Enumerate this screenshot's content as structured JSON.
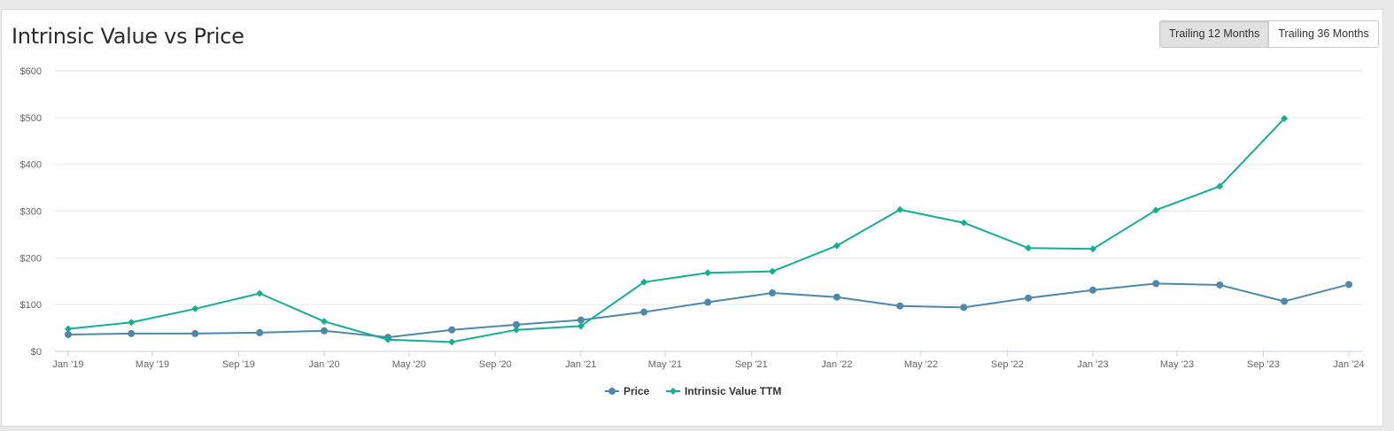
{
  "title": "Intrinsic Value vs Price",
  "buttons": [
    {
      "label": "Trailing 12 Months",
      "active": true
    },
    {
      "label": "Trailing 36 Months",
      "active": false
    }
  ],
  "colors": {
    "price": "#4f88a8",
    "intrinsic": "#12b08f",
    "grid": "#e6e6e6"
  },
  "chart_data": {
    "type": "line",
    "ylim": [
      0,
      600
    ],
    "y_ticks": [
      {
        "value": 0,
        "label": "$0"
      },
      {
        "value": 100,
        "label": "$100"
      },
      {
        "value": 200,
        "label": "$200"
      },
      {
        "value": 300,
        "label": "$300"
      },
      {
        "value": 400,
        "label": "$400"
      },
      {
        "value": 500,
        "label": "$500"
      },
      {
        "value": 600,
        "label": "$600"
      }
    ],
    "xlim": [
      "2019-01-01",
      "2024-01-01"
    ],
    "x_ticks": [
      {
        "value": "2019-01-01",
        "label": "Jan '19"
      },
      {
        "value": "2019-05-01",
        "label": "May '19"
      },
      {
        "value": "2019-09-01",
        "label": "Sep '19"
      },
      {
        "value": "2020-01-01",
        "label": "Jan '20"
      },
      {
        "value": "2020-05-01",
        "label": "May '20"
      },
      {
        "value": "2020-09-01",
        "label": "Sep '20"
      },
      {
        "value": "2021-01-01",
        "label": "Jan '21"
      },
      {
        "value": "2021-05-01",
        "label": "May '21"
      },
      {
        "value": "2021-09-01",
        "label": "Sep '21"
      },
      {
        "value": "2022-01-01",
        "label": "Jan '22"
      },
      {
        "value": "2022-05-01",
        "label": "May '22"
      },
      {
        "value": "2022-09-01",
        "label": "Sep '22"
      },
      {
        "value": "2023-01-01",
        "label": "Jan '23"
      },
      {
        "value": "2023-05-01",
        "label": "May '23"
      },
      {
        "value": "2023-09-01",
        "label": "Sep '23"
      },
      {
        "value": "2024-01-01",
        "label": "Jan '24"
      }
    ],
    "legend_position": "bottom-center",
    "series": [
      {
        "name": "Price",
        "marker": "circle",
        "points": [
          {
            "x": "2019-01-01",
            "y": 36
          },
          {
            "x": "2019-04-01",
            "y": 38
          },
          {
            "x": "2019-07-01",
            "y": 38
          },
          {
            "x": "2019-10-01",
            "y": 40
          },
          {
            "x": "2020-01-01",
            "y": 44
          },
          {
            "x": "2020-04-01",
            "y": 30
          },
          {
            "x": "2020-07-01",
            "y": 46
          },
          {
            "x": "2020-10-01",
            "y": 57
          },
          {
            "x": "2021-01-01",
            "y": 67
          },
          {
            "x": "2021-04-01",
            "y": 84
          },
          {
            "x": "2021-07-01",
            "y": 105
          },
          {
            "x": "2021-10-01",
            "y": 125
          },
          {
            "x": "2022-01-01",
            "y": 116
          },
          {
            "x": "2022-04-01",
            "y": 97
          },
          {
            "x": "2022-07-01",
            "y": 94
          },
          {
            "x": "2022-10-01",
            "y": 114
          },
          {
            "x": "2023-01-01",
            "y": 131
          },
          {
            "x": "2023-04-01",
            "y": 145
          },
          {
            "x": "2023-07-01",
            "y": 142
          },
          {
            "x": "2023-10-01",
            "y": 107
          },
          {
            "x": "2024-01-01",
            "y": 143
          }
        ]
      },
      {
        "name": "Intrinsic Value TTM",
        "marker": "diamond",
        "points": [
          {
            "x": "2019-01-01",
            "y": 48
          },
          {
            "x": "2019-04-01",
            "y": 62
          },
          {
            "x": "2019-07-01",
            "y": 91
          },
          {
            "x": "2019-10-01",
            "y": 124
          },
          {
            "x": "2020-01-01",
            "y": 64
          },
          {
            "x": "2020-04-01",
            "y": 25
          },
          {
            "x": "2020-07-01",
            "y": 20
          },
          {
            "x": "2020-10-01",
            "y": 46
          },
          {
            "x": "2021-01-01",
            "y": 54
          },
          {
            "x": "2021-04-01",
            "y": 148
          },
          {
            "x": "2021-07-01",
            "y": 168
          },
          {
            "x": "2021-10-01",
            "y": 171
          },
          {
            "x": "2022-01-01",
            "y": 226
          },
          {
            "x": "2022-04-01",
            "y": 303
          },
          {
            "x": "2022-07-01",
            "y": 275
          },
          {
            "x": "2022-10-01",
            "y": 221
          },
          {
            "x": "2023-01-01",
            "y": 219
          },
          {
            "x": "2023-04-01",
            "y": 302
          },
          {
            "x": "2023-07-01",
            "y": 353
          },
          {
            "x": "2023-10-01",
            "y": 498
          }
        ]
      }
    ]
  }
}
